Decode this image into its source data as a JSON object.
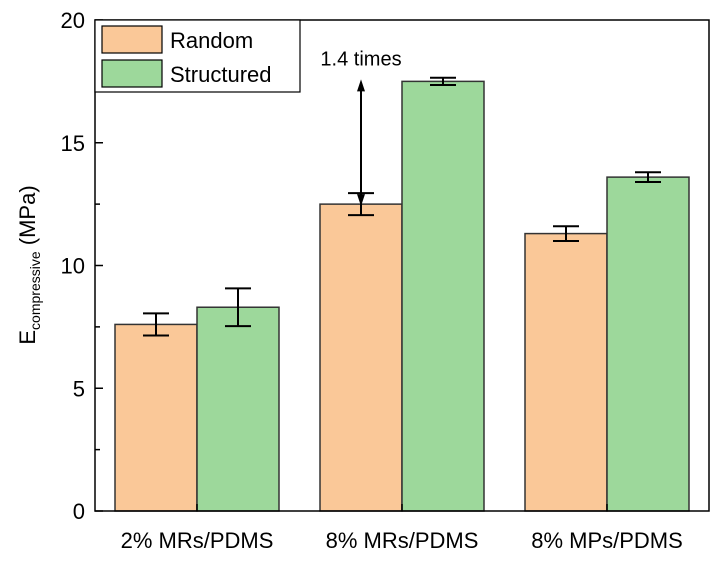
{
  "chart_data": {
    "type": "bar",
    "title": "",
    "xlabel": "",
    "ylabel_main": "E",
    "ylabel_sub": "compressive",
    "ylabel_unit": " (MPa)",
    "ylim": [
      0,
      20
    ],
    "yticks": [
      0,
      5,
      10,
      15,
      20
    ],
    "yminor_step": 2.5,
    "grid": false,
    "legend_position": "top-left",
    "categories": [
      "2% MRs/PDMS",
      "8% MRs/PDMS",
      "8% MPs/PDMS"
    ],
    "series": [
      {
        "name": "Random",
        "color": "#fac898",
        "values": [
          7.6,
          12.5,
          11.3
        ],
        "errors": [
          0.45,
          0.45,
          0.3
        ]
      },
      {
        "name": "Structured",
        "color": "#9dd89b",
        "values": [
          8.3,
          17.5,
          13.6
        ],
        "errors": [
          0.77,
          0.15,
          0.2
        ]
      }
    ],
    "annotation": {
      "text": "1.4 times",
      "category": "8% MRs/PDMS",
      "from": 12.5,
      "to": 17.5
    }
  }
}
